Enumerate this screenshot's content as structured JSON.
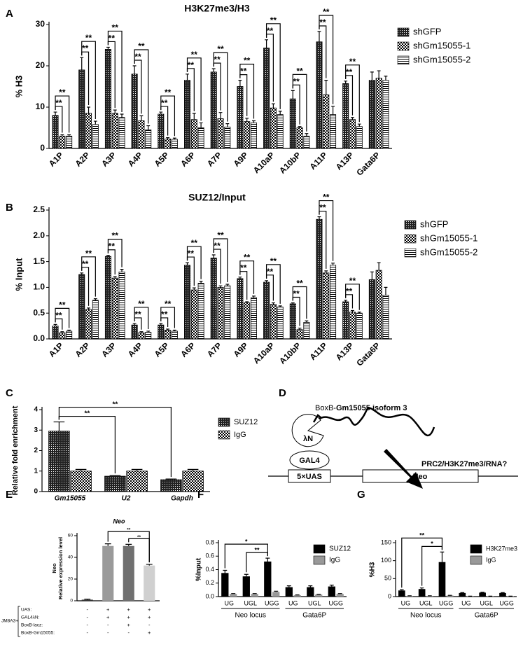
{
  "chart_data": [
    {
      "type": "bar",
      "panel": "A",
      "title": "H3K27me3/H3",
      "ylabel": "% H3",
      "categories": [
        "A1P",
        "A2P",
        "A3P",
        "A4P",
        "A5P",
        "A6P",
        "A7P",
        "A9P",
        "A10aP",
        "A10bP",
        "A11P",
        "A13P",
        "Gata6P"
      ],
      "series": [
        {
          "name": "shGFP",
          "color": "#000000",
          "pattern": "dots",
          "values": [
            8,
            19,
            24,
            18,
            8.3,
            16.5,
            18.5,
            15,
            24.3,
            12,
            25.8,
            15.7,
            16.5
          ],
          "errors": [
            0.8,
            3,
            0.5,
            2,
            0.5,
            1.5,
            0.8,
            1.5,
            2,
            2,
            2.5,
            0.6,
            2
          ]
        },
        {
          "name": "shGm15055-1",
          "color": "#000000",
          "pattern": "checker",
          "values": [
            3,
            8.5,
            8.5,
            6.7,
            2.3,
            7,
            7.2,
            6.5,
            9.8,
            5,
            13,
            7,
            17
          ],
          "errors": [
            0.3,
            1.5,
            0.8,
            1.2,
            0.3,
            1.5,
            1.5,
            0.8,
            1,
            0.3,
            3.5,
            0.5,
            1.8
          ]
        },
        {
          "name": "shGm15055-2",
          "color": "#000000",
          "pattern": "hlines",
          "values": [
            3,
            5.8,
            7.5,
            4.5,
            2.2,
            5,
            5.2,
            6.2,
            8.2,
            3,
            8.2,
            5.3,
            16.5
          ],
          "errors": [
            0.3,
            0.8,
            0.8,
            1,
            0.3,
            1.2,
            0.8,
            0.5,
            0.8,
            0.6,
            2,
            0.6,
            1
          ]
        }
      ],
      "ylim": [
        0,
        30
      ],
      "yticks": [
        0,
        10,
        20,
        30
      ],
      "legend": "right",
      "brackets": [
        {
          "label": "**",
          "from": [
            0,
            0
          ],
          "to": [
            0,
            1
          ]
        },
        {
          "label": "**",
          "from": [
            0,
            0
          ],
          "to": [
            0,
            2
          ]
        },
        {
          "label": "**",
          "from": [
            1,
            0
          ],
          "to": [
            1,
            1
          ]
        },
        {
          "label": "**",
          "from": [
            1,
            0
          ],
          "to": [
            1,
            2
          ]
        },
        {
          "label": "**",
          "from": [
            2,
            0
          ],
          "to": [
            2,
            1
          ]
        },
        {
          "label": "**",
          "from": [
            2,
            0
          ],
          "to": [
            2,
            2
          ]
        },
        {
          "label": "**",
          "from": [
            3,
            0
          ],
          "to": [
            3,
            1
          ]
        },
        {
          "label": "**",
          "from": [
            3,
            0
          ],
          "to": [
            3,
            2
          ]
        },
        {
          "label": "**",
          "from": [
            4,
            0
          ],
          "to": [
            4,
            1
          ]
        },
        {
          "label": "**",
          "from": [
            4,
            0
          ],
          "to": [
            4,
            2
          ]
        },
        {
          "label": "**",
          "from": [
            5,
            0
          ],
          "to": [
            5,
            1
          ]
        },
        {
          "label": "**",
          "from": [
            5,
            0
          ],
          "to": [
            5,
            2
          ]
        },
        {
          "label": "**",
          "from": [
            6,
            0
          ],
          "to": [
            6,
            1
          ]
        },
        {
          "label": "**",
          "from": [
            6,
            0
          ],
          "to": [
            6,
            2
          ]
        },
        {
          "label": "**",
          "from": [
            7,
            0
          ],
          "to": [
            7,
            1
          ]
        },
        {
          "label": "**",
          "from": [
            7,
            0
          ],
          "to": [
            7,
            2
          ]
        },
        {
          "label": "**",
          "from": [
            8,
            0
          ],
          "to": [
            8,
            1
          ]
        },
        {
          "label": "**",
          "from": [
            8,
            0
          ],
          "to": [
            8,
            2
          ]
        },
        {
          "label": "**",
          "from": [
            9,
            0
          ],
          "to": [
            9,
            1
          ]
        },
        {
          "label": "**",
          "from": [
            9,
            0
          ],
          "to": [
            9,
            2
          ]
        },
        {
          "label": "**",
          "from": [
            10,
            0
          ],
          "to": [
            10,
            1
          ]
        },
        {
          "label": "**",
          "from": [
            10,
            0
          ],
          "to": [
            10,
            2
          ]
        },
        {
          "label": "**",
          "from": [
            11,
            0
          ],
          "to": [
            11,
            1
          ]
        },
        {
          "label": "**",
          "from": [
            11,
            0
          ],
          "to": [
            11,
            2
          ]
        }
      ]
    },
    {
      "type": "bar",
      "panel": "B",
      "title": "SUZ12/Input",
      "ylabel": "% Input",
      "categories": [
        "A1P",
        "A2P",
        "A3P",
        "A4P",
        "A5P",
        "A6P",
        "A7P",
        "A9P",
        "A10aP",
        "A10bP",
        "A11P",
        "A13P",
        "Gata6P"
      ],
      "series": [
        {
          "name": "shGFP",
          "color": "#000000",
          "pattern": "dots",
          "values": [
            0.25,
            1.25,
            1.6,
            0.27,
            0.27,
            1.43,
            1.57,
            1.17,
            1.1,
            0.68,
            2.32,
            0.72,
            1.15
          ],
          "errors": [
            0.03,
            0.03,
            0.02,
            0.03,
            0.03,
            0.05,
            0.06,
            0.03,
            0.03,
            0.02,
            0.05,
            0.03,
            0.15
          ]
        },
        {
          "name": "shGm15055-1",
          "color": "#000000",
          "pattern": "checker",
          "values": [
            0.12,
            0.57,
            1.18,
            0.12,
            0.17,
            0.95,
            1.0,
            0.7,
            0.67,
            0.18,
            1.28,
            0.52,
            1.33
          ],
          "errors": [
            0.02,
            0.03,
            0.03,
            0.02,
            0.02,
            0.04,
            0.03,
            0.02,
            0.03,
            0.03,
            0.04,
            0.03,
            0.15
          ]
        },
        {
          "name": "shGm15055-2",
          "color": "#000000",
          "pattern": "hlines",
          "values": [
            0.15,
            0.75,
            1.3,
            0.13,
            0.15,
            1.08,
            1.03,
            0.8,
            0.62,
            0.32,
            1.43,
            0.5,
            0.85
          ],
          "errors": [
            0.02,
            0.03,
            0.05,
            0.02,
            0.02,
            0.04,
            0.03,
            0.03,
            0.02,
            0.03,
            0.04,
            0.02,
            0.15
          ]
        }
      ],
      "ylim": [
        0,
        2.5
      ],
      "yticks": [
        {
          "value": 0,
          "label": "0.0"
        },
        0.5,
        {
          "value": 1,
          "label": "1.0"
        },
        1.5,
        {
          "value": 2,
          "label": "2.0"
        },
        2.5
      ],
      "legend": "right",
      "brackets": [
        {
          "label": "**",
          "from": [
            0,
            0
          ],
          "to": [
            0,
            1
          ]
        },
        {
          "label": "**",
          "from": [
            0,
            0
          ],
          "to": [
            0,
            2
          ]
        },
        {
          "label": "**",
          "from": [
            1,
            0
          ],
          "to": [
            1,
            1
          ]
        },
        {
          "label": "**",
          "from": [
            1,
            0
          ],
          "to": [
            1,
            2
          ]
        },
        {
          "label": "**",
          "from": [
            2,
            0
          ],
          "to": [
            2,
            1
          ]
        },
        {
          "label": "**",
          "from": [
            2,
            0
          ],
          "to": [
            2,
            2
          ]
        },
        {
          "label": "**",
          "from": [
            3,
            0
          ],
          "to": [
            3,
            1
          ]
        },
        {
          "label": "**",
          "from": [
            3,
            0
          ],
          "to": [
            3,
            2
          ]
        },
        {
          "label": "**",
          "from": [
            4,
            0
          ],
          "to": [
            4,
            1
          ]
        },
        {
          "label": "**",
          "from": [
            4,
            0
          ],
          "to": [
            4,
            2
          ]
        },
        {
          "label": "**",
          "from": [
            5,
            0
          ],
          "to": [
            5,
            1
          ]
        },
        {
          "label": "**",
          "from": [
            5,
            0
          ],
          "to": [
            5,
            2
          ]
        },
        {
          "label": "**",
          "from": [
            6,
            0
          ],
          "to": [
            6,
            1
          ]
        },
        {
          "label": "**",
          "from": [
            6,
            0
          ],
          "to": [
            6,
            2
          ]
        },
        {
          "label": "**",
          "from": [
            7,
            0
          ],
          "to": [
            7,
            1
          ]
        },
        {
          "label": "**",
          "from": [
            7,
            0
          ],
          "to": [
            7,
            2
          ]
        },
        {
          "label": "**",
          "from": [
            8,
            0
          ],
          "to": [
            8,
            1
          ]
        },
        {
          "label": "**",
          "from": [
            8,
            0
          ],
          "to": [
            8,
            2
          ]
        },
        {
          "label": "**",
          "from": [
            9,
            0
          ],
          "to": [
            9,
            1
          ]
        },
        {
          "label": "**",
          "from": [
            9,
            0
          ],
          "to": [
            9,
            2
          ]
        },
        {
          "label": "**",
          "from": [
            10,
            0
          ],
          "to": [
            10,
            1
          ]
        },
        {
          "label": "**",
          "from": [
            10,
            0
          ],
          "to": [
            10,
            2
          ]
        },
        {
          "label": "**",
          "from": [
            11,
            0
          ],
          "to": [
            11,
            1
          ]
        },
        {
          "label": "**",
          "from": [
            11,
            0
          ],
          "to": [
            11,
            2
          ]
        }
      ]
    },
    {
      "type": "bar",
      "panel": "C",
      "ylabel": "Relative fold enrichment",
      "categories": [
        "Gm15055",
        "U2",
        "Gapdh"
      ],
      "series": [
        {
          "name": "SUZ12",
          "color": "#000000",
          "pattern": "dots",
          "values": [
            2.95,
            0.75,
            0.58
          ],
          "errors": [
            0.45,
            0.03,
            0.03
          ]
        },
        {
          "name": "IgG",
          "color": "#000000",
          "pattern": "checker",
          "values": [
            1.0,
            1.0,
            1.0
          ],
          "errors": [
            0.08,
            0.08,
            0.08
          ]
        }
      ],
      "ylim": [
        0,
        4
      ],
      "yticks": [
        0,
        1,
        2,
        3,
        4
      ],
      "legend": "right",
      "brackets": [
        {
          "label": "**",
          "from": [
            0,
            0
          ],
          "to": [
            1,
            0
          ]
        },
        {
          "label": "**",
          "from": [
            0,
            0
          ],
          "to": [
            2,
            0
          ]
        }
      ]
    },
    {
      "type": "bar",
      "panel": "E",
      "title": "Neo",
      "ylabel": [
        "Neo",
        "Relative expression level"
      ],
      "categories": [
        null,
        null,
        null,
        null
      ],
      "series": [
        {
          "colors": [
            "#333333",
            "#9a9a9a",
            "#707070",
            "#d0d0d0"
          ],
          "values": [
            1,
            50.5,
            50.5,
            32.5
          ],
          "errors": [
            0.5,
            2,
            1.5,
            1
          ]
        }
      ],
      "ylim": [
        0,
        60
      ],
      "yticks": [
        0,
        20,
        40,
        60
      ],
      "brackets": [
        {
          "label": "**",
          "from": [
            2,
            0
          ],
          "to": [
            3,
            0
          ]
        },
        {
          "label": "**",
          "from": [
            1,
            0
          ],
          "to": [
            3,
            0
          ]
        }
      ],
      "conditions": {
        "label": "JM8A3+",
        "rows": [
          {
            "name": "UAS:",
            "values": [
              "-",
              "+",
              "+",
              "+"
            ]
          },
          {
            "name": "GAL4λN:",
            "values": [
              "-",
              "+",
              "+",
              "+"
            ]
          },
          {
            "name": "BoxB-lacz:",
            "values": [
              "-",
              "-",
              "+",
              "-"
            ]
          },
          {
            "name": "BoxB-Gm15055:",
            "values": [
              "-",
              "-",
              "-",
              "+"
            ]
          }
        ]
      }
    },
    {
      "type": "bar",
      "panel": "F",
      "ylabel": "%Input",
      "categories": [
        "UG",
        "UGL",
        "UGG",
        "UG",
        "UGL",
        "UGG"
      ],
      "group_labels": [
        "Neo locus",
        "Gata6P"
      ],
      "series": [
        {
          "name": "SUZ12",
          "color": "#000000",
          "values": [
            0.35,
            0.3,
            0.52,
            0.14,
            0.14,
            0.15
          ],
          "errors": [
            0.04,
            0.03,
            0.05,
            0.02,
            0.02,
            0.02
          ]
        },
        {
          "name": "IgG",
          "color": "#999999",
          "values": [
            0.04,
            0.04,
            0.07,
            0.02,
            0.03,
            0.04
          ],
          "errors": [
            0.005,
            0.005,
            0.01,
            0.005,
            0.005,
            0.005
          ]
        }
      ],
      "ylim": [
        0,
        0.8
      ],
      "yticks": [
        {
          "value": 0,
          "label": "0.0"
        },
        0.2,
        0.4,
        0.6,
        0.8
      ],
      "legend": "right",
      "brackets": [
        {
          "label": "**",
          "from": [
            1,
            0
          ],
          "to": [
            2,
            0
          ]
        },
        {
          "label": "*",
          "from": [
            0,
            0
          ],
          "to": [
            2,
            0
          ]
        }
      ]
    },
    {
      "type": "bar",
      "panel": "G",
      "ylabel": "%H3",
      "categories": [
        "UG",
        "UGL",
        "UGG",
        "UG",
        "UGL",
        "UGG"
      ],
      "group_labels": [
        "Neo locus",
        "Gata6P"
      ],
      "series": [
        {
          "name": "H3K27me3",
          "color": "#000000",
          "values": [
            17,
            21,
            96,
            10,
            11,
            10
          ],
          "errors": [
            2,
            3,
            28,
            1,
            1,
            1
          ]
        },
        {
          "name": "IgG",
          "color": "#999999",
          "values": [
            2,
            2,
            3,
            1,
            1,
            1
          ],
          "errors": [
            0.3,
            0.3,
            0.5,
            0.2,
            0.2,
            0.2
          ]
        }
      ],
      "ylim": [
        0,
        150
      ],
      "yticks": [
        0,
        50,
        100,
        150
      ],
      "legend": "right",
      "brackets": [
        {
          "label": "*",
          "from": [
            1,
            0
          ],
          "to": [
            2,
            0
          ]
        },
        {
          "label": "**",
          "from": [
            0,
            0
          ],
          "to": [
            2,
            0
          ]
        }
      ]
    }
  ],
  "diagram": {
    "panel": "D",
    "rna_prefix": "BoxB-",
    "rna_name": "Gm15055 isoform 3",
    "tether": "λN",
    "binder": "GAL4",
    "site": "5×UAS",
    "gene": "Neo",
    "effect": "PRC2/H3K27me3/RNA?"
  }
}
